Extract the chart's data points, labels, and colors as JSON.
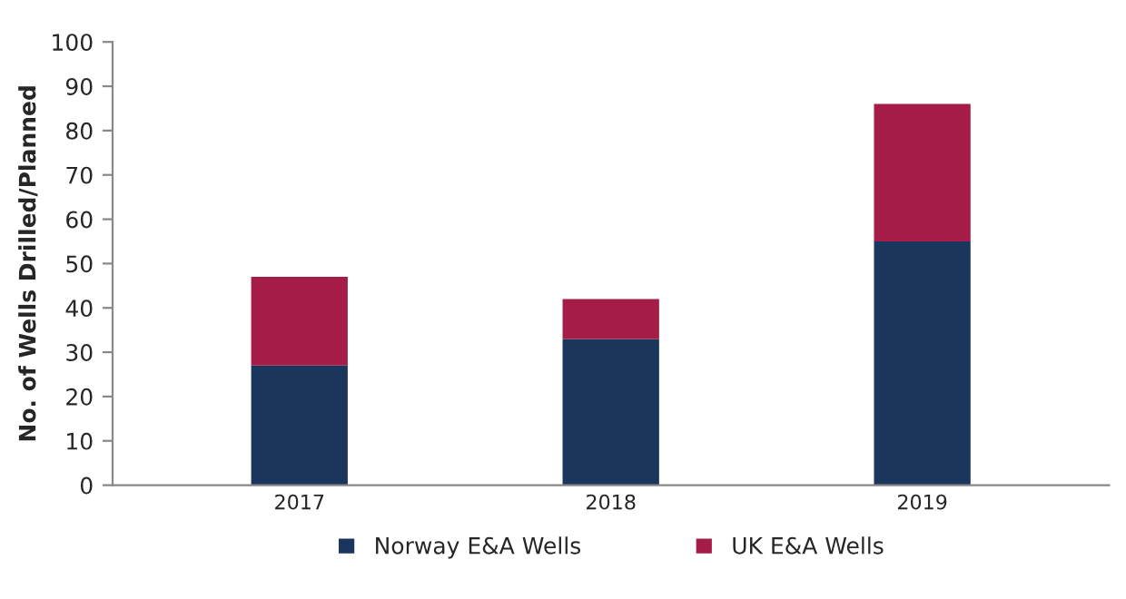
{
  "chart_data": {
    "type": "bar",
    "ylabel": "No. of Wells Drilled/Planned",
    "categories": [
      "2017",
      "2018",
      "2019"
    ],
    "series": [
      {
        "name": "Norway E&A Wells",
        "color": "#1b365d",
        "values": [
          27,
          33,
          55
        ]
      },
      {
        "name": "UK E&A Wells",
        "color": "#a51c46",
        "values": [
          20,
          9,
          31
        ]
      }
    ],
    "stacked": true,
    "ylim": [
      0,
      100
    ],
    "yticks": [
      0,
      10,
      20,
      30,
      40,
      50,
      60,
      70,
      80,
      90,
      100
    ],
    "grid": false,
    "legend": "bottom"
  }
}
